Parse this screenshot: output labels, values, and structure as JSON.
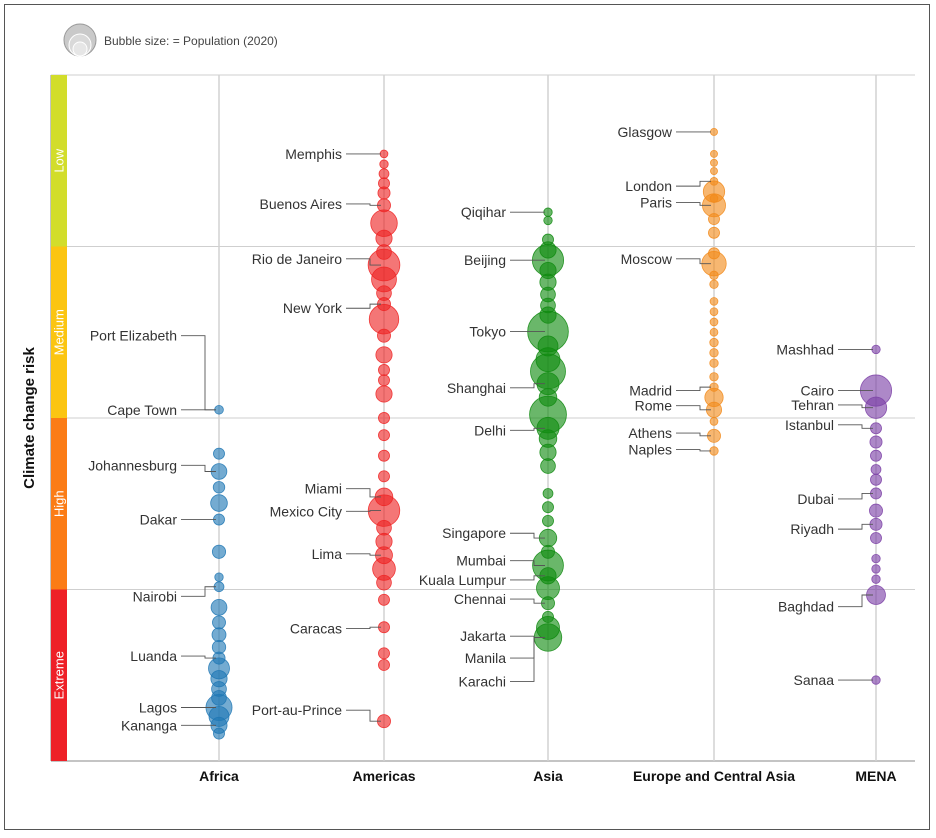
{
  "chart_data": {
    "type": "scatter",
    "subtype": "categorical bubble strip",
    "legend_text": "Bubble size: = Population (2020)",
    "ylabel": "Climate change risk",
    "risk_levels": [
      {
        "name": "Low",
        "color": "#d2dd2b"
      },
      {
        "name": "Medium",
        "color": "#fbc512"
      },
      {
        "name": "High",
        "color": "#fb7c16"
      },
      {
        "name": "Extreme",
        "color": "#ee2027"
      }
    ],
    "y_scale_note": "risk score 0 (lowest) to 100 (highest); bands of 25",
    "regions": [
      {
        "name": "Africa",
        "color": "#1f77b4",
        "points": [
          {
            "risk": 48.8,
            "pop": 1.1
          },
          {
            "risk": 55.2,
            "pop": 2.0
          },
          {
            "risk": 57.8,
            "pop": 4.6
          },
          {
            "risk": 60.1,
            "pop": 2.2
          },
          {
            "risk": 62.4,
            "pop": 5.3
          },
          {
            "risk": 64.8,
            "pop": 2.0
          },
          {
            "risk": 69.5,
            "pop": 3.1
          },
          {
            "risk": 73.2,
            "pop": 1.0
          },
          {
            "risk": 74.6,
            "pop": 1.5
          },
          {
            "risk": 77.6,
            "pop": 4.7
          },
          {
            "risk": 79.8,
            "pop": 3.0
          },
          {
            "risk": 81.6,
            "pop": 3.5
          },
          {
            "risk": 83.4,
            "pop": 3.2
          },
          {
            "risk": 85.0,
            "pop": 2.5
          },
          {
            "risk": 86.5,
            "pop": 8.9
          },
          {
            "risk": 88.0,
            "pop": 5.0
          },
          {
            "risk": 89.5,
            "pop": 4.0
          },
          {
            "risk": 90.8,
            "pop": 4.0
          },
          {
            "risk": 92.2,
            "pop": 14.4
          },
          {
            "risk": 93.5,
            "pop": 8.0
          },
          {
            "risk": 94.8,
            "pop": 4.9
          },
          {
            "risk": 96.0,
            "pop": 2.0
          }
        ],
        "labels": [
          {
            "text": "Port Elizabeth",
            "risk": 38.0
          },
          {
            "text": "Cape Town",
            "risk": 48.8
          },
          {
            "text": "Johannesburg",
            "risk": 56.9
          },
          {
            "text": "Dakar",
            "risk": 64.8
          },
          {
            "text": "Nairobi",
            "risk": 76.0
          },
          {
            "text": "Luanda",
            "risk": 84.7
          },
          {
            "text": "Lagos",
            "risk": 92.2
          },
          {
            "text": "Kananga",
            "risk": 94.8
          }
        ]
      },
      {
        "name": "Americas",
        "color": "#ee2222",
        "points": [
          {
            "risk": 11.5,
            "pop": 0.8
          },
          {
            "risk": 13.0,
            "pop": 1.0
          },
          {
            "risk": 14.4,
            "pop": 1.5
          },
          {
            "risk": 15.8,
            "pop": 2.0
          },
          {
            "risk": 17.2,
            "pop": 2.5
          },
          {
            "risk": 19.0,
            "pop": 3.0
          },
          {
            "risk": 21.6,
            "pop": 15.0
          },
          {
            "risk": 23.8,
            "pop": 5.0
          },
          {
            "risk": 25.8,
            "pop": 4.0
          },
          {
            "risk": 27.7,
            "pop": 22.0
          },
          {
            "risk": 29.8,
            "pop": 13.0
          },
          {
            "risk": 31.8,
            "pop": 4.0
          },
          {
            "risk": 33.4,
            "pop": 3.0
          },
          {
            "risk": 35.6,
            "pop": 18.8
          },
          {
            "risk": 38.0,
            "pop": 3.0
          },
          {
            "risk": 40.8,
            "pop": 5.0
          },
          {
            "risk": 43.0,
            "pop": 2.0
          },
          {
            "risk": 44.5,
            "pop": 2.0
          },
          {
            "risk": 46.5,
            "pop": 5.0
          },
          {
            "risk": 50.0,
            "pop": 2.0
          },
          {
            "risk": 52.5,
            "pop": 2.0
          },
          {
            "risk": 55.5,
            "pop": 2.0
          },
          {
            "risk": 58.5,
            "pop": 2.0
          },
          {
            "risk": 61.5,
            "pop": 6.0
          },
          {
            "risk": 63.5,
            "pop": 21.6
          },
          {
            "risk": 66.0,
            "pop": 4.0
          },
          {
            "risk": 68.0,
            "pop": 5.0
          },
          {
            "risk": 70.0,
            "pop": 5.5
          },
          {
            "risk": 72.0,
            "pop": 10.7
          },
          {
            "risk": 74.0,
            "pop": 4.0
          },
          {
            "risk": 76.5,
            "pop": 2.0
          },
          {
            "risk": 80.5,
            "pop": 2.0
          },
          {
            "risk": 84.3,
            "pop": 2.0
          },
          {
            "risk": 86.0,
            "pop": 2.0
          },
          {
            "risk": 94.2,
            "pop": 3.0
          }
        ],
        "labels": [
          {
            "text": "Memphis",
            "risk": 11.5
          },
          {
            "text": "Buenos Aires",
            "risk": 18.8
          },
          {
            "text": "Rio de Janeiro",
            "risk": 26.8
          },
          {
            "text": "New York",
            "risk": 34.0
          },
          {
            "text": "Miami",
            "risk": 60.3
          },
          {
            "text": "Mexico City",
            "risk": 63.6
          },
          {
            "text": "Lima",
            "risk": 69.8
          },
          {
            "text": "Caracas",
            "risk": 80.7
          },
          {
            "text": "Port-au-Prince",
            "risk": 92.6
          }
        ]
      },
      {
        "name": "Asia",
        "color": "#0f8a0f",
        "points": [
          {
            "risk": 20.0,
            "pop": 1.0
          },
          {
            "risk": 21.2,
            "pop": 1.0
          },
          {
            "risk": 24.0,
            "pop": 2.0
          },
          {
            "risk": 25.5,
            "pop": 5.0
          },
          {
            "risk": 27.0,
            "pop": 21.3
          },
          {
            "risk": 28.5,
            "pop": 5.0
          },
          {
            "risk": 30.2,
            "pop": 5.0
          },
          {
            "risk": 32.0,
            "pop": 4.0
          },
          {
            "risk": 33.6,
            "pop": 4.0
          },
          {
            "risk": 35.0,
            "pop": 5.0
          },
          {
            "risk": 37.4,
            "pop": 37.4
          },
          {
            "risk": 39.5,
            "pop": 8.0
          },
          {
            "risk": 41.5,
            "pop": 12.0
          },
          {
            "risk": 43.2,
            "pop": 27.1
          },
          {
            "risk": 45.0,
            "pop": 10.0
          },
          {
            "risk": 47.0,
            "pop": 6.0
          },
          {
            "risk": 49.5,
            "pop": 30.3
          },
          {
            "risk": 51.5,
            "pop": 10.0
          },
          {
            "risk": 53.0,
            "pop": 6.0
          },
          {
            "risk": 55.0,
            "pop": 5.0
          },
          {
            "risk": 57.0,
            "pop": 4.0
          },
          {
            "risk": 61.0,
            "pop": 1.5
          },
          {
            "risk": 63.0,
            "pop": 2.0
          },
          {
            "risk": 65.0,
            "pop": 2.0
          },
          {
            "risk": 67.5,
            "pop": 5.9
          },
          {
            "risk": 69.5,
            "pop": 3.0
          },
          {
            "risk": 71.5,
            "pop": 20.7
          },
          {
            "risk": 73.0,
            "pop": 5.0
          },
          {
            "risk": 74.8,
            "pop": 10.9
          },
          {
            "risk": 77.0,
            "pop": 3.0
          },
          {
            "risk": 79.0,
            "pop": 2.0
          },
          {
            "risk": 80.6,
            "pop": 11.0
          },
          {
            "risk": 82.0,
            "pop": 16.1
          }
        ],
        "labels": [
          {
            "text": "Qiqihar",
            "risk": 20.0
          },
          {
            "text": "Beijing",
            "risk": 27.0
          },
          {
            "text": "Tokyo",
            "risk": 37.4
          },
          {
            "text": "Shanghai",
            "risk": 45.6
          },
          {
            "text": "Delhi",
            "risk": 51.8
          },
          {
            "text": "Singapore",
            "risk": 66.8
          },
          {
            "text": "Mumbai",
            "risk": 70.8
          },
          {
            "text": "Kuala Lumpur",
            "risk": 73.6
          },
          {
            "text": "Chennai",
            "risk": 76.4
          },
          {
            "text": "Jakarta",
            "risk": 81.8
          },
          {
            "text": "Manila",
            "risk": 85.0
          },
          {
            "text": "Karachi",
            "risk": 88.4
          }
        ]
      },
      {
        "name": "Europe and Central Asia",
        "color": "#f28a1a",
        "points": [
          {
            "risk": 8.3,
            "pop": 0.6
          },
          {
            "risk": 11.5,
            "pop": 0.6
          },
          {
            "risk": 12.8,
            "pop": 0.6
          },
          {
            "risk": 14.0,
            "pop": 0.6
          },
          {
            "risk": 15.5,
            "pop": 0.8
          },
          {
            "risk": 17.0,
            "pop": 9.3
          },
          {
            "risk": 18.0,
            "pop": 0.8
          },
          {
            "risk": 19.0,
            "pop": 11.0
          },
          {
            "risk": 21.0,
            "pop": 2.0
          },
          {
            "risk": 23.0,
            "pop": 2.0
          },
          {
            "risk": 26.0,
            "pop": 2.0
          },
          {
            "risk": 27.5,
            "pop": 12.5
          },
          {
            "risk": 29.2,
            "pop": 1.0
          },
          {
            "risk": 30.5,
            "pop": 1.0
          },
          {
            "risk": 33.0,
            "pop": 0.8
          },
          {
            "risk": 34.5,
            "pop": 0.8
          },
          {
            "risk": 36.0,
            "pop": 0.8
          },
          {
            "risk": 37.5,
            "pop": 0.8
          },
          {
            "risk": 39.0,
            "pop": 1.0
          },
          {
            "risk": 40.5,
            "pop": 1.0
          },
          {
            "risk": 42.0,
            "pop": 1.0
          },
          {
            "risk": 44.0,
            "pop": 1.0
          },
          {
            "risk": 45.5,
            "pop": 1.0
          },
          {
            "risk": 47.0,
            "pop": 6.6
          },
          {
            "risk": 48.8,
            "pop": 4.3
          },
          {
            "risk": 50.5,
            "pop": 0.8
          },
          {
            "risk": 52.6,
            "pop": 3.0
          },
          {
            "risk": 54.8,
            "pop": 1.0
          }
        ],
        "labels": [
          {
            "text": "Glasgow",
            "risk": 8.3
          },
          {
            "text": "London",
            "risk": 16.2
          },
          {
            "text": "Paris",
            "risk": 18.6
          },
          {
            "text": "Moscow",
            "risk": 26.8
          },
          {
            "text": "Madrid",
            "risk": 46.0
          },
          {
            "text": "Rome",
            "risk": 48.2
          },
          {
            "text": "Athens",
            "risk": 52.2
          },
          {
            "text": "Naples",
            "risk": 54.6
          }
        ]
      },
      {
        "name": "MENA",
        "color": "#7b3fa6",
        "points": [
          {
            "risk": 40.0,
            "pop": 1.0
          },
          {
            "risk": 46.0,
            "pop": 21.3
          },
          {
            "risk": 48.5,
            "pop": 9.3
          },
          {
            "risk": 51.5,
            "pop": 2.0
          },
          {
            "risk": 53.5,
            "pop": 2.5
          },
          {
            "risk": 55.5,
            "pop": 2.0
          },
          {
            "risk": 57.5,
            "pop": 1.5
          },
          {
            "risk": 59.0,
            "pop": 2.0
          },
          {
            "risk": 61.0,
            "pop": 2.0
          },
          {
            "risk": 63.5,
            "pop": 3.0
          },
          {
            "risk": 65.5,
            "pop": 2.5
          },
          {
            "risk": 67.5,
            "pop": 2.0
          },
          {
            "risk": 70.5,
            "pop": 1.0
          },
          {
            "risk": 72.0,
            "pop": 1.0
          },
          {
            "risk": 73.5,
            "pop": 1.0
          },
          {
            "risk": 75.8,
            "pop": 7.1
          },
          {
            "risk": 88.2,
            "pop": 1.0
          }
        ],
        "labels": [
          {
            "text": "Mashhad",
            "risk": 40.0
          },
          {
            "text": "Cairo",
            "risk": 46.0
          },
          {
            "text": "Tehran",
            "risk": 48.1
          },
          {
            "text": "Istanbul",
            "risk": 51.0
          },
          {
            "text": "Dubai",
            "risk": 61.8
          },
          {
            "text": "Riyadh",
            "risk": 66.2
          },
          {
            "text": "Baghdad",
            "risk": 77.5
          },
          {
            "text": "Sanaa",
            "risk": 88.2
          }
        ]
      }
    ]
  }
}
